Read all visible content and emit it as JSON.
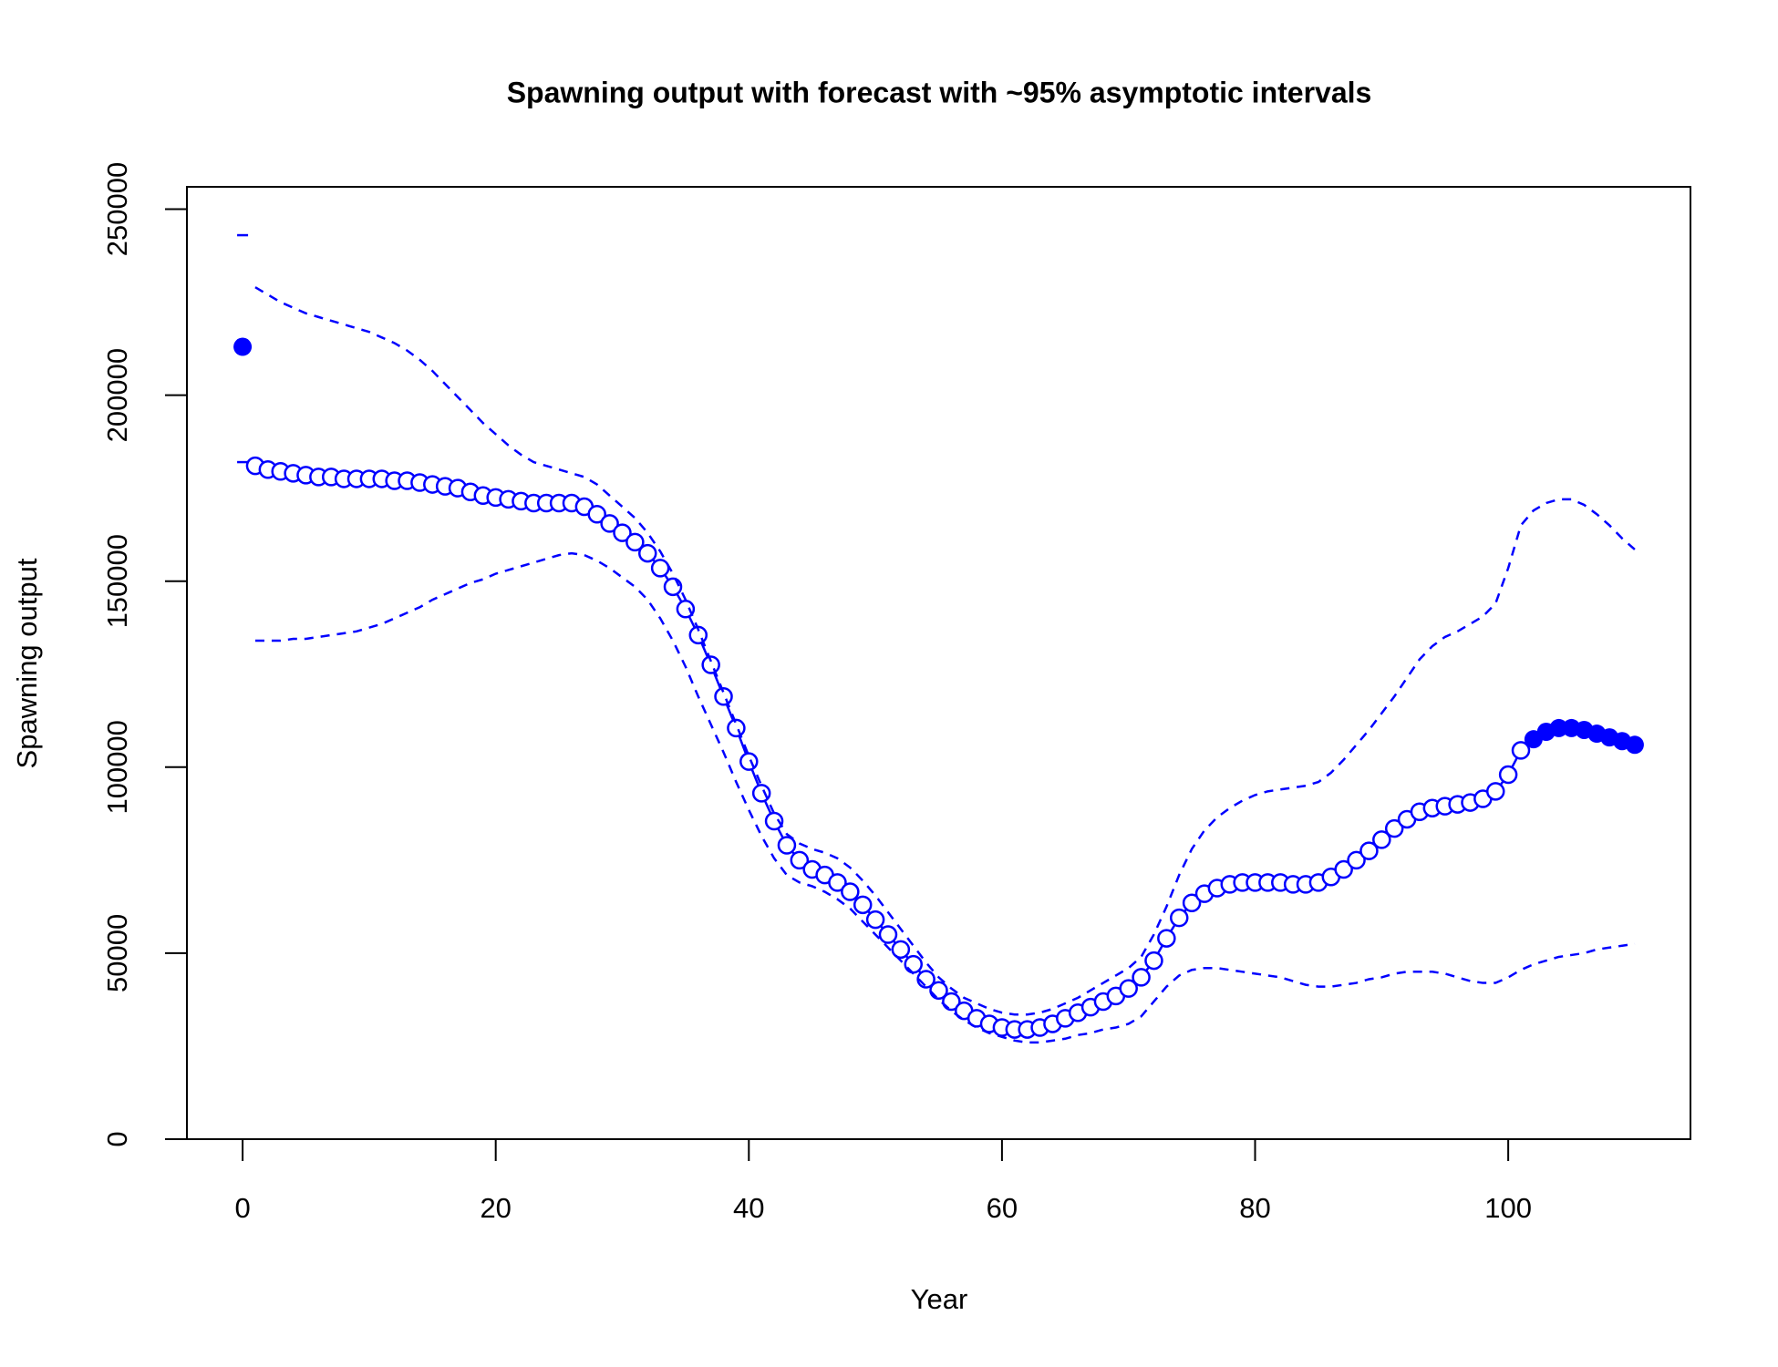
{
  "chart_data": {
    "type": "line",
    "title": "Spawning output with forecast with ~95% asymptotic intervals",
    "xlabel": "Year",
    "ylabel": "Spawning output",
    "xlim": [
      -4.4,
      114.4
    ],
    "ylim": [
      0,
      256000
    ],
    "xticks": [
      0,
      20,
      40,
      60,
      80,
      100
    ],
    "yticks": [
      0,
      50000,
      100000,
      150000,
      200000,
      250000
    ],
    "series": [
      {
        "color": "#0000ff",
        "marker": "filled",
        "line": "none",
        "x": [
          0
        ],
        "values": [
          213000
        ]
      },
      {
        "color": "#0000ff",
        "marker": "dash",
        "line": "none",
        "x": [
          0,
          0
        ],
        "values": [
          243000,
          182000
        ]
      },
      {
        "color": "#0000ff",
        "marker": "open",
        "line": "solid",
        "x": [
          1,
          2,
          3,
          4,
          5,
          6,
          7,
          8,
          9,
          10,
          11,
          12,
          13,
          14,
          15,
          16,
          17,
          18,
          19,
          20,
          21,
          22,
          23,
          24,
          25,
          26,
          27,
          28,
          29,
          30,
          31,
          32,
          33,
          34,
          35,
          36,
          37,
          38,
          39,
          40,
          41,
          42,
          43,
          44,
          45,
          46,
          47,
          48,
          49,
          50,
          51,
          52,
          53,
          54,
          55,
          56,
          57,
          58,
          59,
          60,
          61,
          62,
          63,
          64,
          65,
          66,
          67,
          68,
          69,
          70,
          71,
          72,
          73,
          74,
          75,
          76,
          77,
          78,
          79,
          80,
          81,
          82,
          83,
          84,
          85,
          86,
          87,
          88,
          89,
          90,
          91,
          92,
          93,
          94,
          95,
          96,
          97,
          98,
          99,
          100,
          101
        ],
        "values": [
          181000,
          180000,
          179500,
          179000,
          178500,
          178000,
          178000,
          177500,
          177500,
          177500,
          177500,
          177000,
          177000,
          176500,
          176000,
          175500,
          175000,
          174000,
          173000,
          172500,
          172000,
          171500,
          171000,
          171000,
          171000,
          171000,
          170000,
          168000,
          165500,
          163000,
          160500,
          157500,
          153500,
          148500,
          142500,
          135500,
          127500,
          119000,
          110500,
          101500,
          93000,
          85500,
          79000,
          75000,
          72500,
          71000,
          69000,
          66500,
          63000,
          59000,
          55000,
          51000,
          47000,
          43000,
          40000,
          37000,
          34500,
          32500,
          31000,
          30000,
          29500,
          29500,
          30000,
          31000,
          32500,
          34000,
          35500,
          37000,
          38500,
          40500,
          43500,
          48000,
          54000,
          59500,
          63500,
          66000,
          67500,
          68500,
          69000,
          69000,
          69000,
          69000,
          68500,
          68500,
          69000,
          70500,
          72500,
          75000,
          77500,
          80500,
          83500,
          86000,
          88000,
          89000,
          89500,
          90000,
          90500,
          91500,
          93500,
          98000,
          104500
        ]
      },
      {
        "color": "#0000ff",
        "marker": "filled",
        "line": "solid",
        "x": [
          102,
          103,
          104,
          105,
          106,
          107,
          108,
          109,
          110
        ],
        "values": [
          107500,
          109500,
          110500,
          110500,
          110000,
          109000,
          108000,
          107000,
          106000
        ]
      },
      {
        "color": "#0000ff",
        "marker": "none",
        "line": "dashed",
        "x": [
          1,
          2,
          3,
          4,
          5,
          6,
          7,
          8,
          9,
          10,
          11,
          12,
          13,
          14,
          15,
          16,
          17,
          18,
          19,
          20,
          21,
          22,
          23,
          24,
          25,
          26,
          27,
          28,
          29,
          30,
          31,
          32,
          33,
          34,
          35,
          36,
          37,
          38,
          39,
          40,
          41,
          42,
          43,
          44,
          45,
          46,
          47,
          48,
          49,
          50,
          51,
          52,
          53,
          54,
          55,
          56,
          57,
          58,
          59,
          60,
          61,
          62,
          63,
          64,
          65,
          66,
          67,
          68,
          69,
          70,
          71,
          72,
          73,
          74,
          75,
          76,
          77,
          78,
          79,
          80,
          81,
          82,
          83,
          84,
          85,
          86,
          87,
          88,
          89,
          90,
          91,
          92,
          93,
          94,
          95,
          96,
          97,
          98,
          99,
          100,
          101,
          102,
          103,
          104,
          105,
          106,
          107,
          108,
          109,
          110
        ],
        "values": [
          229000,
          227000,
          225000,
          223500,
          222000,
          221000,
          220000,
          219000,
          218000,
          217000,
          215500,
          214000,
          212000,
          209500,
          206500,
          203000,
          199500,
          196000,
          192500,
          189500,
          186500,
          184000,
          182000,
          181000,
          180000,
          179000,
          178000,
          176000,
          173000,
          170000,
          167000,
          163000,
          158000,
          152000,
          145000,
          137000,
          128500,
          120000,
          111500,
          103000,
          95000,
          87500,
          82000,
          79500,
          78000,
          77000,
          75500,
          73000,
          69500,
          65500,
          61000,
          56500,
          52000,
          47500,
          43500,
          40500,
          38000,
          36500,
          35000,
          34000,
          33500,
          33500,
          34000,
          35000,
          36500,
          38000,
          40000,
          42000,
          44000,
          46000,
          49000,
          55000,
          62500,
          71000,
          78000,
          83000,
          86500,
          89000,
          91000,
          92500,
          93500,
          94000,
          94500,
          95000,
          96000,
          98500,
          102000,
          106000,
          110000,
          114500,
          119000,
          124000,
          129000,
          132500,
          135000,
          136500,
          138500,
          140500,
          144000,
          153500,
          165000,
          169000,
          171000,
          172000,
          172000,
          170500,
          168000,
          165000,
          161500,
          158500
        ]
      },
      {
        "color": "#0000ff",
        "marker": "none",
        "line": "dashed",
        "x": [
          1,
          2,
          3,
          4,
          5,
          6,
          7,
          8,
          9,
          10,
          11,
          12,
          13,
          14,
          15,
          16,
          17,
          18,
          19,
          20,
          21,
          22,
          23,
          24,
          25,
          26,
          27,
          28,
          29,
          30,
          31,
          32,
          33,
          34,
          35,
          36,
          37,
          38,
          39,
          40,
          41,
          42,
          43,
          44,
          45,
          46,
          47,
          48,
          49,
          50,
          51,
          52,
          53,
          54,
          55,
          56,
          57,
          58,
          59,
          60,
          61,
          62,
          63,
          64,
          65,
          66,
          67,
          68,
          69,
          70,
          71,
          72,
          73,
          74,
          75,
          76,
          77,
          78,
          79,
          80,
          81,
          82,
          83,
          84,
          85,
          86,
          87,
          88,
          89,
          90,
          91,
          92,
          93,
          94,
          95,
          96,
          97,
          98,
          99,
          100,
          101,
          102,
          103,
          104,
          105,
          106,
          107,
          108,
          109,
          110
        ],
        "values": [
          134000,
          134000,
          134000,
          134500,
          134500,
          135000,
          135500,
          136000,
          136500,
          137500,
          138500,
          140000,
          141500,
          143000,
          145000,
          146500,
          148000,
          149500,
          150500,
          152000,
          153000,
          154000,
          155000,
          156000,
          157000,
          157500,
          157000,
          155500,
          153500,
          151000,
          148500,
          145000,
          140000,
          134000,
          127000,
          119000,
          111500,
          104000,
          96000,
          88500,
          81500,
          75500,
          71000,
          69000,
          68000,
          66500,
          64500,
          62000,
          58500,
          55000,
          51500,
          48000,
          44500,
          41000,
          37500,
          34500,
          32000,
          30000,
          28500,
          27500,
          26500,
          26000,
          26000,
          26500,
          27000,
          28000,
          28500,
          29500,
          30000,
          31000,
          33000,
          37000,
          41000,
          44000,
          45500,
          46000,
          46000,
          45500,
          45000,
          44500,
          44000,
          43500,
          42500,
          41500,
          41000,
          41000,
          41500,
          42000,
          43000,
          43500,
          44500,
          45000,
          45000,
          45000,
          44500,
          43500,
          42500,
          42000,
          42000,
          43500,
          45500,
          47000,
          48000,
          49000,
          49500,
          50000,
          51000,
          51500,
          52000,
          52500
        ]
      }
    ]
  }
}
